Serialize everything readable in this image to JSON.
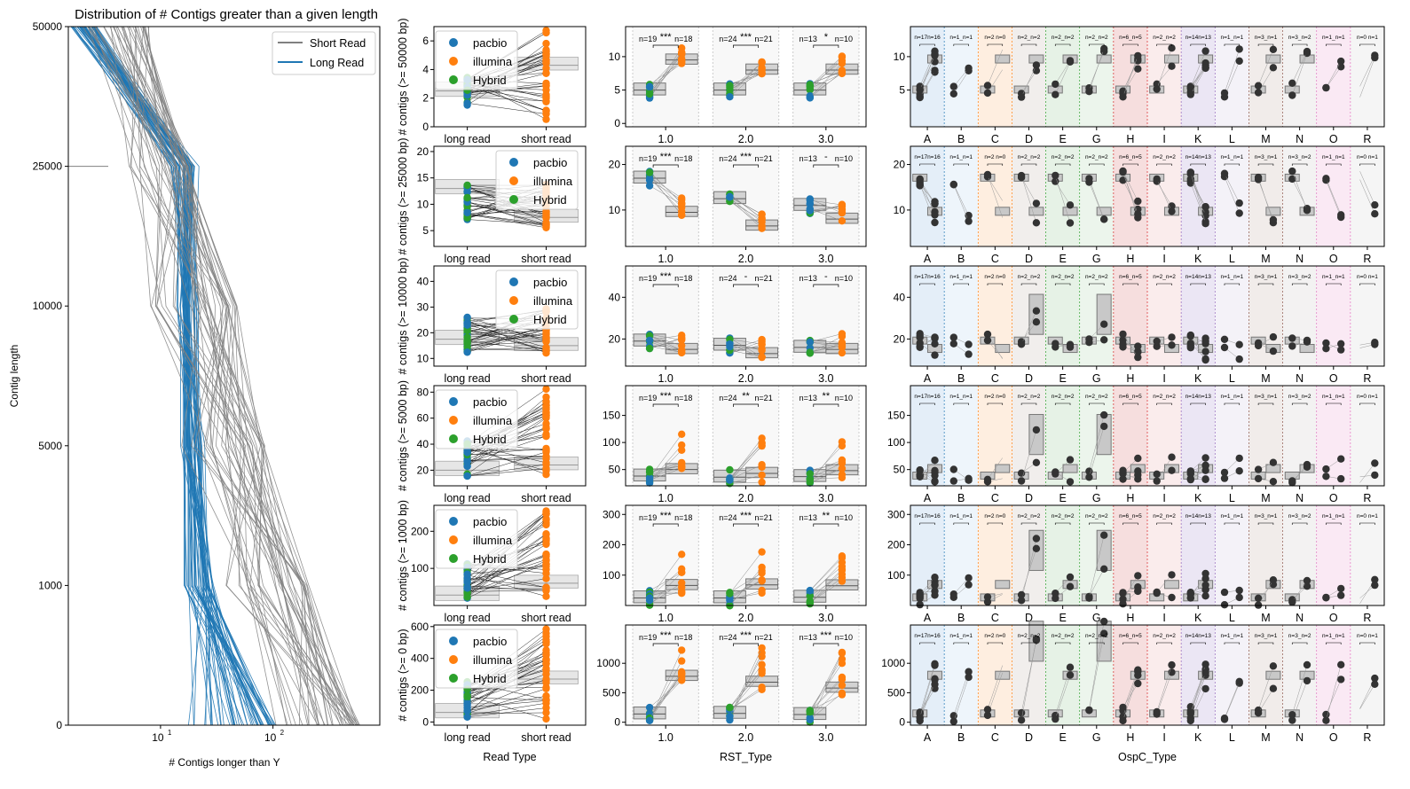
{
  "figure": {
    "main_chart": {
      "title": "Distribution of # Contigs greater than a given length",
      "xlabel": "# Contigs longer than Y",
      "ylabel": "Contig length",
      "y_ticks": [
        "0",
        "1000",
        "5000",
        "10000",
        "25000",
        "50000"
      ],
      "x_ticks": [
        "10",
        "1",
        "10",
        "2"
      ],
      "legend": [
        "Short Read",
        "Long Read"
      ]
    },
    "row_labels": [
      "# contigs (>= 50000 bp)",
      "# contigs (>= 25000 bp)",
      "# contigs (>= 10000 bp)",
      "# contigs (>= 5000 bp)",
      "# contigs (>= 1000 bp)",
      "# contigs (>= 0 bp)"
    ],
    "col_xlabels": [
      "Read Type",
      "RST_Type",
      "OspC_Type"
    ],
    "readtype_categories": [
      "long read",
      "short read"
    ],
    "rst_categories": [
      "1.0",
      "2.0",
      "3.0"
    ],
    "ospc_categories": [
      "A",
      "B",
      "C",
      "D",
      "E",
      "G",
      "H",
      "I",
      "K",
      "L",
      "M",
      "N",
      "O",
      "R"
    ],
    "legend_labels": [
      "pacbio",
      "illumina",
      "Hybrid"
    ],
    "row_yticks": [
      [
        "0",
        "2",
        "4",
        "6"
      ],
      [
        "5",
        "10",
        "15",
        "20"
      ],
      [
        "10",
        "20",
        "30",
        "40"
      ],
      [
        "20",
        "40",
        "60",
        "80"
      ],
      [
        "100",
        "200"
      ],
      [
        "0",
        "200",
        "400",
        "600"
      ]
    ],
    "rst_yticks": [
      [
        "0",
        "5",
        "10"
      ],
      [
        "10",
        "20"
      ],
      [
        "20",
        "40"
      ],
      [
        "50",
        "100",
        "150"
      ],
      [
        "100",
        "200",
        "300"
      ],
      [
        "0",
        "500",
        "1000"
      ]
    ],
    "ospc_yticks": [
      [
        "5",
        "10"
      ],
      [
        "10",
        "20"
      ],
      [
        "20",
        "40"
      ],
      [
        "50",
        "100",
        "150"
      ],
      [
        "100",
        "200",
        "300"
      ],
      [
        "0",
        "500",
        "1000"
      ]
    ],
    "rst_annotations": [
      [
        [
          "n=19",
          "***",
          "n=18"
        ],
        [
          "n=24",
          "***",
          "n=21"
        ],
        [
          "n=13",
          "*",
          "n=10"
        ]
      ],
      [
        [
          "n=19",
          "***",
          "n=18"
        ],
        [
          "n=24",
          "***",
          "n=21"
        ],
        [
          "n=13",
          "-",
          "n=10"
        ]
      ],
      [
        [
          "n=19",
          "***",
          "n=18"
        ],
        [
          "n=24",
          "-",
          "n=21"
        ],
        [
          "n=13",
          "-",
          "n=10"
        ]
      ],
      [
        [
          "n=19",
          "***",
          "n=18"
        ],
        [
          "n=24",
          "**",
          "n=21"
        ],
        [
          "n=13",
          "**",
          "n=10"
        ]
      ],
      [
        [
          "n=19",
          "***",
          "n=18"
        ],
        [
          "n=24",
          "***",
          "n=21"
        ],
        [
          "n=13",
          "**",
          "n=10"
        ]
      ],
      [
        [
          "n=19",
          "***",
          "n=18"
        ],
        [
          "n=24",
          "***",
          "n=21"
        ],
        [
          "n=13",
          "***",
          "n=10"
        ]
      ]
    ],
    "ospc_annotations": [
      "n=17n=16",
      "n=1_n=1",
      "n=2 n=0",
      "n=2_n=2",
      "n=2_n=2",
      "n=2_n=2",
      "n=6_n=5",
      "n=2_n=2",
      "n=14n=13",
      "n=1_n=1",
      "n=3_n=1",
      "n=3_n=2",
      "n=1_n=1",
      "n=0 n=1"
    ]
  },
  "chart_data": [
    {
      "type": "line",
      "title": "Distribution of # Contigs greater than a given length",
      "xlabel": "# Contigs longer than Y",
      "ylabel": "Contig length",
      "x_scale": "log",
      "y_levels": [
        0,
        1000,
        5000,
        10000,
        25000,
        50000
      ],
      "series": [
        {
          "name": "Short Read",
          "color": "#808080",
          "typical_values": [
            300,
            60,
            25,
            15,
            8,
            3
          ]
        },
        {
          "name": "Long Read",
          "color": "#1f77b4",
          "typical_values": [
            40,
            20,
            18,
            17,
            15,
            2
          ]
        }
      ]
    },
    {
      "type": "scatter",
      "xlabel": "Read Type",
      "categories": [
        "long read",
        "short read"
      ],
      "rows": [
        {
          "ylabel": "# contigs (>= 50000 bp)",
          "ylim": [
            0,
            7
          ],
          "median": [
            2.5,
            4.3
          ]
        },
        {
          "ylabel": "# contigs (>= 25000 bp)",
          "ylim": [
            2,
            21
          ],
          "median": [
            13,
            7.5
          ]
        },
        {
          "ylabel": "# contigs (>= 10000 bp)",
          "ylim": [
            7,
            46
          ],
          "median": [
            17.5,
            15
          ]
        },
        {
          "ylabel": "# contigs (>= 5000 bp)",
          "ylim": [
            8,
            85
          ],
          "median": [
            20,
            24
          ]
        },
        {
          "ylabel": "# contigs (>= 1000 bp)",
          "ylim": [
            0,
            270
          ],
          "median": [
            28,
            60
          ]
        },
        {
          "ylabel": "# contigs (>= 0 bp)",
          "ylim": [
            -20,
            610
          ],
          "median": [
            60,
            270
          ]
        }
      ]
    },
    {
      "type": "box",
      "xlabel": "RST_Type",
      "categories": [
        "1.0",
        "2.0",
        "3.0"
      ],
      "rows": [
        {
          "ylim": [
            -0.5,
            14.5
          ],
          "long_median": [
            5,
            5,
            5
          ],
          "short_median": [
            9.5,
            8,
            8
          ]
        },
        {
          "ylim": [
            2,
            24
          ],
          "long_median": [
            17,
            12.5,
            11
          ],
          "short_median": [
            9.5,
            6.5,
            8
          ]
        },
        {
          "ylim": [
            7,
            55
          ],
          "long_median": [
            19,
            17,
            16
          ],
          "short_median": [
            15,
            13,
            15
          ]
        },
        {
          "ylim": [
            20,
            205
          ],
          "long_median": [
            38,
            36,
            37
          ],
          "short_median": [
            50,
            43,
            48
          ]
        },
        {
          "ylim": [
            0,
            330
          ],
          "long_median": [
            25,
            25,
            27
          ],
          "short_median": [
            66,
            68,
            65
          ]
        },
        {
          "ylim": [
            -50,
            1650
          ],
          "long_median": [
            140,
            150,
            130
          ],
          "short_median": [
            780,
            680,
            580
          ]
        }
      ]
    },
    {
      "type": "box",
      "xlabel": "OspC_Type",
      "categories": [
        "A",
        "B",
        "C",
        "D",
        "E",
        "G",
        "H",
        "I",
        "K",
        "L",
        "M",
        "N",
        "O",
        "R"
      ]
    }
  ]
}
